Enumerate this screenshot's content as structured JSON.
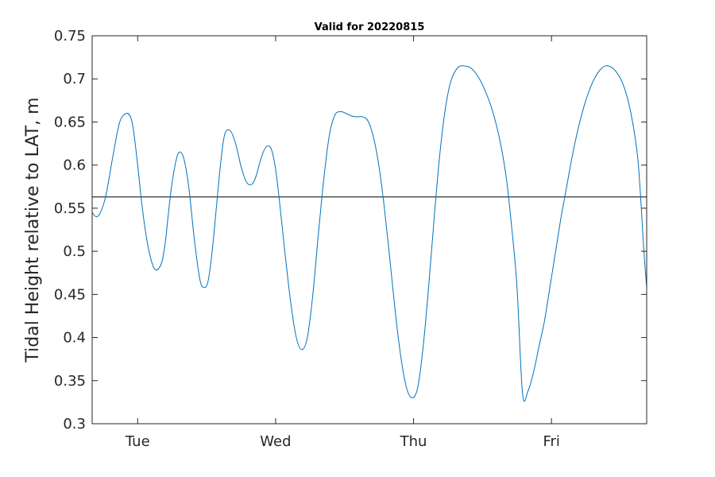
{
  "chart_data": {
    "type": "line",
    "title": "Valid for 20220815",
    "ylabel": "Tidal Height relative to LAT, m",
    "xlabel": "",
    "ylim": [
      0.3,
      0.75
    ],
    "xlim": [
      0,
      4.02
    ],
    "yticks": [
      "0.3",
      "0.35",
      "0.4",
      "0.45",
      "0.5",
      "0.55",
      "0.6",
      "0.65",
      "0.7",
      "0.75"
    ],
    "xticks": [
      {
        "label": "Tue",
        "x": 0.33
      },
      {
        "label": "Wed",
        "x": 1.33
      },
      {
        "label": "Thu",
        "x": 2.33
      },
      {
        "label": "Fri",
        "x": 3.33
      }
    ],
    "reference_line": 0.563,
    "grid": false,
    "colors": {
      "series": "#0072bd",
      "reference": "#000000",
      "axes": "#262626"
    },
    "series": [
      {
        "x": [
          0.0,
          0.03,
          0.06,
          0.1,
          0.15,
          0.2,
          0.25,
          0.28,
          0.3,
          0.33,
          0.36,
          0.4,
          0.45,
          0.5,
          0.53,
          0.55,
          0.58,
          0.62,
          0.66,
          0.7,
          0.74,
          0.78,
          0.81,
          0.84,
          0.87,
          0.9,
          0.93,
          0.96,
          1.0,
          1.04,
          1.08,
          1.12,
          1.16,
          1.19,
          1.21,
          1.24,
          1.27,
          1.3,
          1.33,
          1.36,
          1.4,
          1.44,
          1.48,
          1.52,
          1.56,
          1.6,
          1.64,
          1.68,
          1.72,
          1.76,
          1.8,
          1.84,
          1.88,
          1.92,
          1.96,
          2.0,
          2.04,
          2.08,
          2.12,
          2.16,
          2.2,
          2.24,
          2.28,
          2.32,
          2.36,
          2.4,
          2.44,
          2.48,
          2.52,
          2.56,
          2.6,
          2.65,
          2.7,
          2.75,
          2.8,
          2.85,
          2.9,
          2.95,
          3.0,
          3.04,
          3.08,
          3.12,
          3.16,
          3.2,
          3.24,
          3.28,
          3.32,
          3.36,
          3.4,
          3.44,
          3.48,
          3.52,
          3.56,
          3.6,
          3.64,
          3.68,
          3.72,
          3.76,
          3.8,
          3.84,
          3.88,
          3.92,
          3.96,
          4.0,
          4.02
        ],
        "y": [
          0.545,
          0.54,
          0.545,
          0.565,
          0.61,
          0.65,
          0.66,
          0.655,
          0.64,
          0.6,
          0.555,
          0.51,
          0.48,
          0.485,
          0.51,
          0.54,
          0.58,
          0.612,
          0.61,
          0.575,
          0.515,
          0.468,
          0.458,
          0.465,
          0.5,
          0.55,
          0.6,
          0.635,
          0.64,
          0.625,
          0.598,
          0.58,
          0.578,
          0.588,
          0.6,
          0.615,
          0.622,
          0.618,
          0.595,
          0.555,
          0.495,
          0.44,
          0.4,
          0.386,
          0.4,
          0.45,
          0.52,
          0.585,
          0.635,
          0.658,
          0.662,
          0.66,
          0.657,
          0.656,
          0.656,
          0.651,
          0.632,
          0.598,
          0.548,
          0.488,
          0.426,
          0.375,
          0.341,
          0.33,
          0.342,
          0.39,
          0.46,
          0.54,
          0.612,
          0.665,
          0.697,
          0.713,
          0.715,
          0.712,
          0.702,
          0.686,
          0.664,
          0.633,
          0.588,
          0.53,
          0.458,
          0.335,
          0.338,
          0.36,
          0.39,
          0.42,
          0.46,
          0.5,
          0.54,
          0.575,
          0.61,
          0.64,
          0.665,
          0.685,
          0.7,
          0.71,
          0.715,
          0.714,
          0.708,
          0.697,
          0.678,
          0.648,
          0.6,
          0.5,
          0.458
        ]
      }
    ]
  }
}
